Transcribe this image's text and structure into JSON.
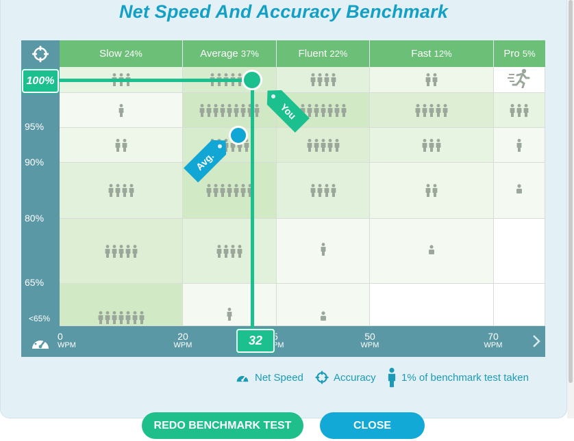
{
  "title": "Net Speed And Accuracy Benchmark",
  "chart_data": {
    "type": "heatmap",
    "title": "Net Speed And Accuracy Benchmark",
    "columns": [
      {
        "label": "Slow",
        "pct": "24%"
      },
      {
        "label": "Average",
        "pct": "37%"
      },
      {
        "label": "Fluent",
        "pct": "22%"
      },
      {
        "label": "Fast",
        "pct": "12%"
      },
      {
        "label": "Pro",
        "pct": "5%"
      }
    ],
    "y_ticks": [
      "95%",
      "90%",
      "80%",
      "65%",
      "<65%"
    ],
    "x_ticks": [
      {
        "value": "0",
        "unit": "WPM"
      },
      {
        "value": "20",
        "unit": "WPM"
      },
      {
        "value": "5",
        "unit": "PM"
      },
      {
        "value": "50",
        "unit": "WPM"
      },
      {
        "value": "70",
        "unit": "WPM"
      }
    ],
    "rows": [
      {
        "accuracy": "100%",
        "counts": [
          3,
          6,
          4,
          2,
          0
        ]
      },
      {
        "accuracy": "95-100%",
        "counts": [
          1,
          9,
          7,
          5,
          3
        ]
      },
      {
        "accuracy": "90-95%",
        "counts": [
          2,
          6,
          5,
          3,
          1
        ]
      },
      {
        "accuracy": "80-90%",
        "counts": [
          4,
          7,
          4,
          2,
          1
        ]
      },
      {
        "accuracy": "65-80%",
        "counts": [
          5,
          4,
          1,
          1,
          0
        ]
      },
      {
        "accuracy": "<65%",
        "counts": [
          7,
          1,
          1,
          0,
          0
        ]
      }
    ],
    "you": {
      "wpm": 32,
      "accuracy": 100,
      "label": "You"
    },
    "average": {
      "label": "Avg."
    },
    "you_accuracy_label": "100%",
    "you_wpm_label": "32"
  },
  "colors": {
    "accent_green": "#1cc08f",
    "avg_blue": "#12a6d4",
    "header_green": "#6bbf77",
    "axis_teal": "#5b98a5",
    "title_blue": "#14a0c4"
  },
  "legend": {
    "net_speed": "Net Speed",
    "accuracy": "Accuracy",
    "benchmark": "1% of benchmark test taken"
  },
  "buttons": {
    "redo": "REDO BENCHMARK TEST",
    "close": "CLOSE"
  },
  "icons": {
    "corner": "crosshair-icon",
    "xaxis": "speedometer-icon",
    "pro_cell": "running-person-icon",
    "next": "chevron-right-icon"
  }
}
